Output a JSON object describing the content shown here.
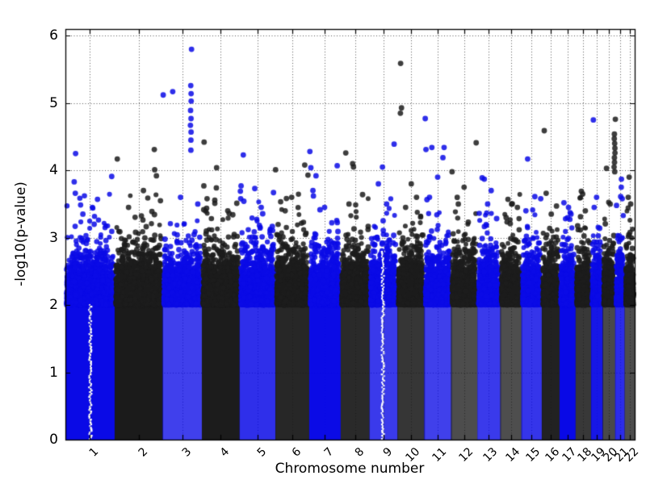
{
  "chart_data": {
    "type": "scatter",
    "subtype": "manhattan-plot",
    "title": "",
    "xlabel": "Chromosome number",
    "ylabel": "-log10(p-value)",
    "ylim": [
      0,
      6.1
    ],
    "yticks": [
      "0",
      "1",
      "2",
      "3",
      "4",
      "5",
      "6"
    ],
    "x_categories": [
      "1",
      "2",
      "3",
      "4",
      "5",
      "6",
      "7",
      "8",
      "9",
      "10",
      "11",
      "12",
      "13",
      "14",
      "15",
      "16",
      "17",
      "18",
      "19",
      "20",
      "21",
      "22"
    ],
    "chromosome_lengths_mb": [
      249,
      243,
      198,
      191,
      181,
      171,
      159,
      146,
      141,
      136,
      135,
      134,
      115,
      107,
      103,
      90,
      81,
      78,
      59,
      63,
      48,
      51
    ],
    "series_colors": {
      "odd_chromosomes": "#0a0ae6",
      "even_chromosomes": "#1c1c1c"
    },
    "point_alpha": 0.85,
    "grid": {
      "style": "dotted",
      "color": "#555555",
      "on": true
    },
    "legend": "none",
    "background_density": {
      "description": "dense GWAS background: solid color below ~2.0, exponentially thinning up to ~3.6",
      "solid_below": 2.0,
      "exponential_tail_mean": 0.22,
      "points_per_pixel": 38
    },
    "centromere_gaps": [
      {
        "chromosome": "1",
        "frac": 0.5,
        "below_value": 2.0
      },
      {
        "chromosome": "9",
        "frac": 0.47,
        "below_value": 2.8
      }
    ],
    "notable_points": [
      [
        1,
        0.2,
        4.25
      ],
      [
        1,
        0.19,
        3.83
      ],
      [
        1,
        0.19,
        3.66
      ],
      [
        1,
        0.64,
        3.57
      ],
      [
        1,
        0.93,
        3.91
      ],
      [
        1,
        0.55,
        3.45
      ],
      [
        1,
        0.35,
        3.35
      ],
      [
        2,
        0.06,
        4.17
      ],
      [
        2,
        0.83,
        4.31
      ],
      [
        2,
        0.84,
        4.01
      ],
      [
        2,
        0.88,
        3.92
      ],
      [
        2,
        0.6,
        3.7
      ],
      [
        2,
        0.3,
        3.45
      ],
      [
        2,
        0.95,
        3.55
      ],
      [
        3,
        0.02,
        5.12
      ],
      [
        3,
        0.26,
        5.17
      ],
      [
        3,
        0.72,
        5.8
      ],
      [
        3,
        0.72,
        5.26
      ],
      [
        3,
        0.72,
        5.14
      ],
      [
        3,
        0.72,
        5.03
      ],
      [
        3,
        0.72,
        4.89
      ],
      [
        3,
        0.72,
        4.77
      ],
      [
        3,
        0.72,
        4.67
      ],
      [
        3,
        0.72,
        4.57
      ],
      [
        3,
        0.72,
        4.45
      ],
      [
        3,
        0.72,
        4.3
      ],
      [
        3,
        0.45,
        3.6
      ],
      [
        3,
        0.9,
        3.5
      ],
      [
        4,
        0.05,
        4.42
      ],
      [
        4,
        0.38,
        4.04
      ],
      [
        4,
        0.06,
        3.77
      ],
      [
        4,
        0.38,
        3.74
      ],
      [
        4,
        0.13,
        3.58
      ],
      [
        4,
        0.36,
        3.51
      ],
      [
        4,
        0.7,
        3.4
      ],
      [
        5,
        0.1,
        4.23
      ],
      [
        5,
        0.03,
        3.77
      ],
      [
        5,
        0.03,
        3.69
      ],
      [
        5,
        0.03,
        3.58
      ],
      [
        5,
        0.42,
        3.73
      ],
      [
        5,
        0.93,
        3.67
      ],
      [
        5,
        0.6,
        3.45
      ],
      [
        6,
        0.02,
        4.01
      ],
      [
        6,
        0.85,
        4.08
      ],
      [
        6,
        0.95,
        3.93
      ],
      [
        6,
        0.5,
        3.6
      ],
      [
        6,
        0.3,
        3.4
      ],
      [
        7,
        0.02,
        4.28
      ],
      [
        7,
        0.05,
        4.04
      ],
      [
        7,
        0.22,
        3.92
      ],
      [
        7,
        0.9,
        4.07
      ],
      [
        7,
        0.1,
        3.7
      ],
      [
        7,
        0.12,
        3.62
      ],
      [
        7,
        0.5,
        3.45
      ],
      [
        8,
        0.17,
        4.26
      ],
      [
        8,
        0.4,
        4.1
      ],
      [
        8,
        0.45,
        4.05
      ],
      [
        8,
        0.75,
        3.64
      ],
      [
        8,
        0.3,
        3.5
      ],
      [
        9,
        0.9,
        4.39
      ],
      [
        9,
        0.45,
        4.05
      ],
      [
        9,
        0.3,
        3.8
      ],
      [
        9,
        0.6,
        3.5
      ],
      [
        10,
        0.13,
        5.59
      ],
      [
        10,
        0.13,
        4.93
      ],
      [
        10,
        0.13,
        4.85
      ],
      [
        10,
        0.5,
        3.8
      ],
      [
        10,
        0.7,
        3.6
      ],
      [
        10,
        0.3,
        3.45
      ],
      [
        11,
        0.05,
        4.77
      ],
      [
        11,
        0.05,
        4.31
      ],
      [
        11,
        0.3,
        4.34
      ],
      [
        11,
        0.72,
        4.34
      ],
      [
        11,
        0.72,
        4.19
      ],
      [
        11,
        0.5,
        3.9
      ],
      [
        11,
        0.2,
        3.6
      ],
      [
        12,
        0.93,
        4.41
      ],
      [
        12,
        0.03,
        3.98
      ],
      [
        12,
        0.5,
        3.75
      ],
      [
        12,
        0.3,
        3.5
      ],
      [
        13,
        0.2,
        3.89
      ],
      [
        13,
        0.32,
        3.87
      ],
      [
        13,
        0.6,
        3.7
      ],
      [
        13,
        0.45,
        3.5
      ],
      [
        14,
        0.35,
        3.57
      ],
      [
        14,
        0.55,
        3.5
      ],
      [
        14,
        0.8,
        3.45
      ],
      [
        14,
        0.3,
        3.3
      ],
      [
        15,
        0.32,
        4.17
      ],
      [
        15,
        0.64,
        3.61
      ],
      [
        15,
        0.92,
        3.58
      ],
      [
        15,
        0.2,
        3.4
      ],
      [
        16,
        0.14,
        4.59
      ],
      [
        16,
        0.22,
        3.66
      ],
      [
        16,
        0.85,
        3.47
      ],
      [
        16,
        0.5,
        3.35
      ],
      [
        17,
        0.3,
        3.52
      ],
      [
        17,
        0.6,
        3.45
      ],
      [
        17,
        0.75,
        3.35
      ],
      [
        18,
        0.37,
        3.69
      ],
      [
        18,
        0.45,
        3.65
      ],
      [
        18,
        0.6,
        3.4
      ],
      [
        19,
        0.19,
        4.75
      ],
      [
        19,
        0.5,
        3.6
      ],
      [
        19,
        0.3,
        3.45
      ],
      [
        20,
        0.3,
        4.03
      ],
      [
        20,
        0.97,
        4.76
      ],
      [
        20,
        0.95,
        4.54
      ],
      [
        20,
        0.95,
        4.47
      ],
      [
        20,
        0.95,
        4.4
      ],
      [
        20,
        0.95,
        4.33
      ],
      [
        20,
        0.95,
        4.26
      ],
      [
        20,
        0.95,
        4.19
      ],
      [
        20,
        0.95,
        4.12
      ],
      [
        20,
        0.95,
        4.05
      ],
      [
        20,
        0.95,
        3.98
      ],
      [
        20,
        0.6,
        3.5
      ],
      [
        21,
        0.6,
        3.87
      ],
      [
        21,
        0.6,
        3.75
      ],
      [
        21,
        0.65,
        3.61
      ],
      [
        21,
        0.75,
        3.58
      ],
      [
        22,
        0.45,
        3.9
      ],
      [
        22,
        0.3,
        3.6
      ],
      [
        22,
        0.6,
        3.5
      ]
    ]
  }
}
